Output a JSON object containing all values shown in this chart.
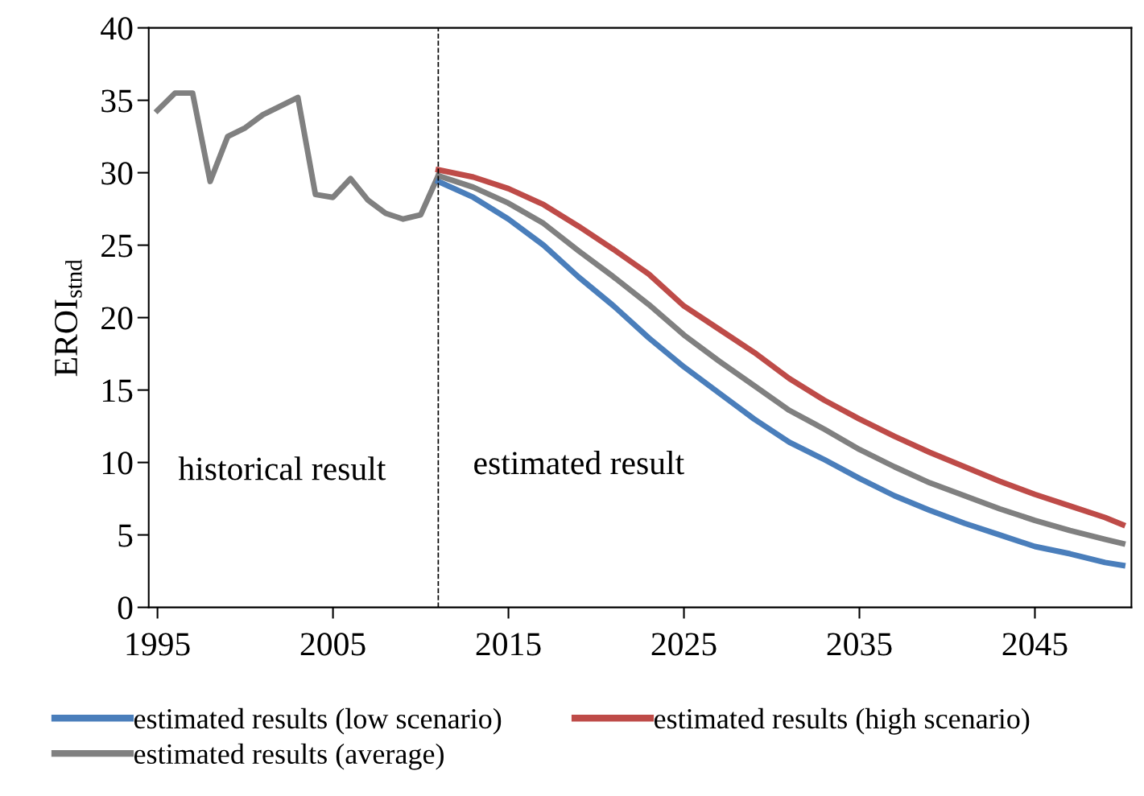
{
  "chart_data": {
    "type": "line",
    "ylabel": "EROI$_{stnd}$",
    "xlim": [
      1994.5,
      2050.5
    ],
    "xticks": [
      1995,
      2005,
      2015,
      2025,
      2035,
      2045
    ],
    "ylim": [
      0,
      40
    ],
    "yticks": [
      0,
      5,
      10,
      15,
      20,
      25,
      30,
      35,
      40
    ],
    "grid": false,
    "legend": "bottom",
    "marker": "none",
    "line_style": "solid",
    "series": [
      {
        "color": "#808080",
        "x": [
          1995,
          1996,
          1997,
          1998,
          1999,
          2000,
          2001,
          2002,
          2003,
          2004,
          2005,
          2006,
          2007,
          2008,
          2009,
          2010,
          2011
        ],
        "values": [
          34.3,
          35.5,
          35.5,
          29.4,
          32.5,
          33.1,
          34.0,
          34.6,
          35.2,
          28.5,
          28.3,
          29.6,
          28.1,
          27.2,
          26.8,
          27.1,
          29.8
        ]
      },
      {
        "name": "estimated results (low scenario)",
        "color": "#4a7ebb",
        "x": [
          2011,
          2013,
          2015,
          2017,
          2019,
          2021,
          2023,
          2025,
          2027,
          2029,
          2031,
          2033,
          2035,
          2037,
          2039,
          2041,
          2043,
          2045,
          2047,
          2049,
          2050
        ],
        "values": [
          29.4,
          28.3,
          26.8,
          25.0,
          22.8,
          20.8,
          18.6,
          16.6,
          14.8,
          13.0,
          11.4,
          10.2,
          8.9,
          7.7,
          6.7,
          5.8,
          5.0,
          4.2,
          3.7,
          3.1,
          2.9
        ]
      },
      {
        "name": "estimated results (high scenario)",
        "color": "#be4b48",
        "x": [
          2011,
          2013,
          2015,
          2017,
          2019,
          2021,
          2023,
          2025,
          2027,
          2029,
          2031,
          2033,
          2035,
          2037,
          2039,
          2041,
          2043,
          2045,
          2047,
          2049,
          2050
        ],
        "values": [
          30.2,
          29.7,
          28.9,
          27.8,
          26.3,
          24.7,
          23.0,
          20.8,
          19.2,
          17.6,
          15.8,
          14.3,
          13.0,
          11.8,
          10.7,
          9.7,
          8.7,
          7.8,
          7.0,
          6.2,
          5.7
        ]
      },
      {
        "name": "estimated results (average)",
        "color": "#808080",
        "x": [
          2011,
          2013,
          2015,
          2017,
          2019,
          2021,
          2023,
          2025,
          2027,
          2029,
          2031,
          2033,
          2035,
          2037,
          2039,
          2041,
          2043,
          2045,
          2047,
          2049,
          2050
        ],
        "values": [
          29.8,
          29.0,
          27.9,
          26.5,
          24.6,
          22.8,
          20.9,
          18.8,
          17.0,
          15.3,
          13.6,
          12.3,
          10.9,
          9.7,
          8.6,
          7.7,
          6.8,
          6.0,
          5.3,
          4.7,
          4.4
        ]
      }
    ],
    "ref_lines": [
      {
        "axis": "x",
        "value": 2011,
        "color": "#000000",
        "line_style": "dashed"
      }
    ],
    "annotations": [
      "historical result",
      "estimated result"
    ]
  }
}
